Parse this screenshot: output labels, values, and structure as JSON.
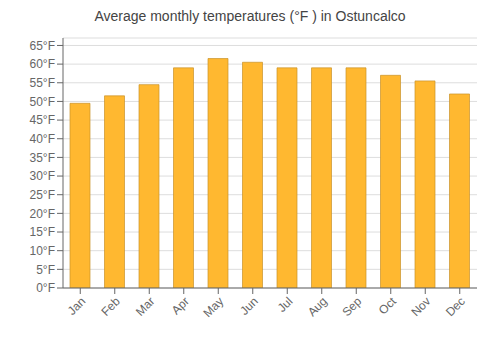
{
  "chart_data": {
    "type": "bar",
    "title": "Average monthly temperatures (°F ) in Ostuncalco",
    "categories": [
      "Jan",
      "Feb",
      "Mar",
      "Apr",
      "May",
      "Jun",
      "Jul",
      "Aug",
      "Sep",
      "Oct",
      "Nov",
      "Dec"
    ],
    "values": [
      49.5,
      51.5,
      54.5,
      59.0,
      61.5,
      60.5,
      59.0,
      59.0,
      59.0,
      57.0,
      55.5,
      52.0
    ],
    "color": "#FFB830",
    "ylim": [
      0,
      67
    ],
    "yticks": [
      {
        "value": 0,
        "label": "0°F"
      },
      {
        "value": 5,
        "label": "5°F"
      },
      {
        "value": 10,
        "label": "10°F"
      },
      {
        "value": 15,
        "label": "15°F"
      },
      {
        "value": 20,
        "label": "20°F"
      },
      {
        "value": 25,
        "label": "25°F"
      },
      {
        "value": 30,
        "label": "30°F"
      },
      {
        "value": 35,
        "label": "35°F"
      },
      {
        "value": 40,
        "label": "40°F"
      },
      {
        "value": 45,
        "label": "45°F"
      },
      {
        "value": 50,
        "label": "50°F"
      },
      {
        "value": 55,
        "label": "55°F"
      },
      {
        "value": 60,
        "label": "60°F"
      },
      {
        "value": 65,
        "label": "65°F"
      }
    ],
    "grid": true
  }
}
